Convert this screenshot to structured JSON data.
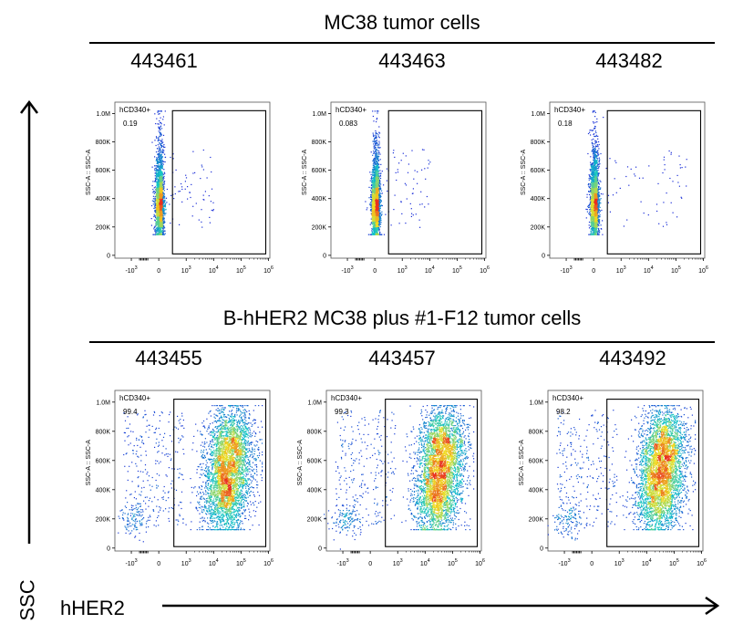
{
  "figure": {
    "y_axis_caption": "SSC",
    "x_axis_caption": "hHER2"
  },
  "colors": {
    "gate": "#000000",
    "density_low": "#1a22d8",
    "density_mid": "#10c6c8",
    "density_high": "#f0e020",
    "density_peak": "#e83020"
  },
  "groups": [
    {
      "title": "MC38 tumor cells"
    },
    {
      "title": "B-hHER2 MC38 plus #1-F12 tumor cells"
    }
  ],
  "chart_data": [
    {
      "type": "scatter",
      "group": 0,
      "sample_id": "443461",
      "gate_label": "hCD340+",
      "gate_value": "0.19",
      "ylabel": "SSC-A :: SSC-A",
      "population": "negative",
      "y_ticks": [
        "0",
        "200K",
        "400K",
        "600K",
        "800K",
        "1.0M"
      ],
      "x_ticks": [
        {
          "b": "-10",
          "e": "3"
        },
        {
          "b": "0",
          "e": ""
        },
        {
          "b": "10",
          "e": "3"
        },
        {
          "b": "10",
          "e": "4"
        },
        {
          "b": "10",
          "e": "5"
        },
        {
          "b": "10",
          "e": "6"
        }
      ]
    },
    {
      "type": "scatter",
      "group": 0,
      "sample_id": "443463",
      "gate_label": "hCD340+",
      "gate_value": "0.083",
      "ylabel": "SSC-A :: SSC-A",
      "population": "negative",
      "y_ticks": [
        "0",
        "200K",
        "400K",
        "600K",
        "800K",
        "1.0M"
      ],
      "x_ticks": [
        {
          "b": "-10",
          "e": "3"
        },
        {
          "b": "0",
          "e": ""
        },
        {
          "b": "10",
          "e": "3"
        },
        {
          "b": "10",
          "e": "4"
        },
        {
          "b": "10",
          "e": "5"
        },
        {
          "b": "10",
          "e": "6"
        }
      ]
    },
    {
      "type": "scatter",
      "group": 0,
      "sample_id": "443482",
      "gate_label": "hCD340+",
      "gate_value": "0.18",
      "ylabel": "SSC-A :: SSC-A",
      "population": "negative",
      "y_ticks": [
        "0",
        "200K",
        "400K",
        "600K",
        "800K",
        "1.0M"
      ],
      "x_ticks": [
        {
          "b": "-10",
          "e": "3"
        },
        {
          "b": "0",
          "e": ""
        },
        {
          "b": "10",
          "e": "3"
        },
        {
          "b": "10",
          "e": "4"
        },
        {
          "b": "10",
          "e": "5"
        },
        {
          "b": "10",
          "e": "6"
        }
      ]
    },
    {
      "type": "scatter",
      "group": 1,
      "sample_id": "443455",
      "gate_label": "hCD340+",
      "gate_value": "99.4",
      "ylabel": "SSC-A :: SSC-A",
      "population": "positive",
      "y_ticks": [
        "0",
        "200K",
        "400K",
        "600K",
        "800K",
        "1.0M"
      ],
      "x_ticks": [
        {
          "b": "-10",
          "e": "3"
        },
        {
          "b": "0",
          "e": ""
        },
        {
          "b": "10",
          "e": "3"
        },
        {
          "b": "10",
          "e": "4"
        },
        {
          "b": "10",
          "e": "5"
        },
        {
          "b": "10",
          "e": "6"
        }
      ]
    },
    {
      "type": "scatter",
      "group": 1,
      "sample_id": "443457",
      "gate_label": "hCD340+",
      "gate_value": "99.3",
      "ylabel": "SSC-A :: SSC-A",
      "population": "positive",
      "y_ticks": [
        "0",
        "200K",
        "400K",
        "600K",
        "800K",
        "1.0M"
      ],
      "x_ticks": [
        {
          "b": "-10",
          "e": "3"
        },
        {
          "b": "0",
          "e": ""
        },
        {
          "b": "10",
          "e": "3"
        },
        {
          "b": "10",
          "e": "4"
        },
        {
          "b": "10",
          "e": "5"
        },
        {
          "b": "10",
          "e": "6"
        }
      ]
    },
    {
      "type": "scatter",
      "group": 1,
      "sample_id": "443492",
      "gate_label": "hCD340+",
      "gate_value": "98.2",
      "ylabel": "SSC-A :: SSC-A",
      "population": "positive",
      "y_ticks": [
        "0",
        "200K",
        "400K",
        "600K",
        "800K",
        "1.0M"
      ],
      "x_ticks": [
        {
          "b": "-10",
          "e": "3"
        },
        {
          "b": "0",
          "e": ""
        },
        {
          "b": "10",
          "e": "3"
        },
        {
          "b": "10",
          "e": "4"
        },
        {
          "b": "10",
          "e": "5"
        },
        {
          "b": "10",
          "e": "6"
        }
      ]
    }
  ]
}
